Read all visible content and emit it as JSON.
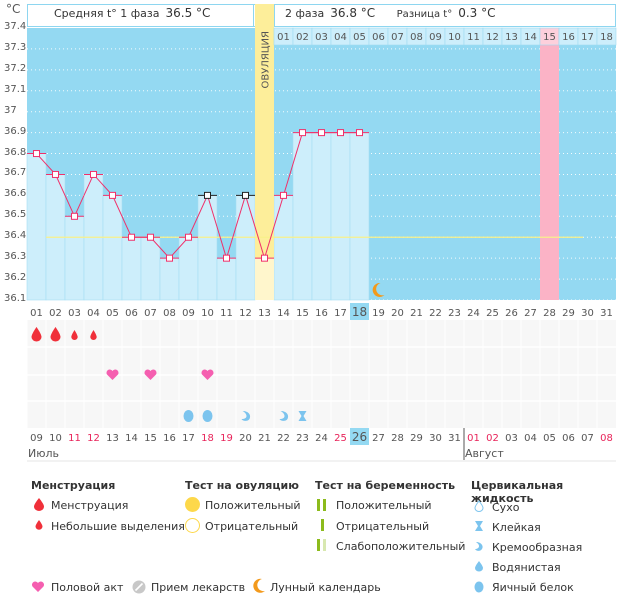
{
  "header": {
    "unit": "°C",
    "phase1_label": "Средняя t° 1 фаза",
    "phase1_value": "36.5 °C",
    "phase2_label": "2 фаза",
    "phase2_value": "36.8 °C",
    "diff_label": "Разница t°",
    "diff_value": "0.3 °C",
    "ovulation_label": "ОВУЛЯЦИЯ"
  },
  "chart_data": {
    "type": "line",
    "title": "",
    "xlabel": "",
    "ylabel": "°C",
    "ylim": [
      36.1,
      37.4
    ],
    "yticks": [
      "37.4",
      "37.3",
      "37.2",
      "37.1",
      "37",
      "36.9",
      "36.8",
      "36.7",
      "36.6",
      "36.5",
      "36.4",
      "36.3",
      "36.2",
      "36.1"
    ],
    "cycle_days": [
      "01",
      "02",
      "03",
      "04",
      "05",
      "06",
      "07",
      "08",
      "09",
      "10",
      "11",
      "12",
      "13",
      "14",
      "15",
      "16",
      "17",
      "18",
      "19",
      "20",
      "21",
      "22",
      "23",
      "24",
      "25",
      "26",
      "27",
      "28",
      "29",
      "30",
      "31"
    ],
    "phase2_days": [
      "01",
      "02",
      "03",
      "04",
      "05",
      "06",
      "07",
      "08",
      "09",
      "10",
      "11",
      "12",
      "13",
      "14",
      "15",
      "16",
      "17",
      "18"
    ],
    "temperatures": [
      36.8,
      36.7,
      36.5,
      36.7,
      36.6,
      36.4,
      36.4,
      36.3,
      36.4,
      36.6,
      36.3,
      36.6,
      36.3,
      36.6,
      36.9,
      36.9,
      36.9,
      36.9
    ],
    "marker_style": [
      "pink",
      "pink",
      "pink",
      "pink",
      "pink",
      "pink",
      "pink",
      "pink",
      "pink",
      "black",
      "pink",
      "black",
      "pink",
      "pink",
      "pink",
      "pink",
      "pink",
      "pink"
    ],
    "coverline": 36.4,
    "ovulation_day": 13,
    "current_day": 18,
    "expected_period_day": 28,
    "moon_day": 19,
    "calendar_dates": [
      "09",
      "10",
      "11",
      "12",
      "13",
      "14",
      "15",
      "16",
      "17",
      "18",
      "19",
      "20",
      "21",
      "22",
      "23",
      "24",
      "25",
      "26",
      "27",
      "28",
      "29",
      "30",
      "31",
      "01",
      "02",
      "03",
      "04",
      "05",
      "06",
      "07",
      "08"
    ],
    "weekend_dates_idx": [
      2,
      3,
      9,
      10,
      16,
      23,
      24,
      30
    ],
    "today_date_idx": 17,
    "months": [
      {
        "label": "Июль",
        "start_idx": 0
      },
      {
        "label": "Август",
        "start_idx": 23
      }
    ],
    "menstruation": [
      {
        "day": 1,
        "type": "heavy"
      },
      {
        "day": 2,
        "type": "heavy"
      },
      {
        "day": 3,
        "type": "light"
      },
      {
        "day": 4,
        "type": "light"
      }
    ],
    "intercourse_days": [
      5,
      7,
      10
    ],
    "cervical_fluid": [
      {
        "day": 9,
        "type": "egg-white"
      },
      {
        "day": 10,
        "type": "egg-white"
      },
      {
        "day": 12,
        "type": "creamy"
      },
      {
        "day": 14,
        "type": "creamy"
      },
      {
        "day": 15,
        "type": "sticky"
      }
    ]
  },
  "colors": {
    "sky": "#94d9f2",
    "bar": "#cdeefb",
    "ovulation": "#fdee9a",
    "period": "#fbb3c6",
    "line": "#f0306a",
    "coverline": "#f8f08a",
    "weekend": "#e8245a",
    "today": "#94d9f2"
  },
  "legend": {
    "menstruation": {
      "title": "Менструация",
      "items": [
        "Менструация",
        "Небольшие выделения"
      ]
    },
    "ovulation_test": {
      "title": "Тест на овуляцию",
      "items": [
        "Положительный",
        "Отрицательный"
      ]
    },
    "pregnancy_test": {
      "title": "Тест на беременность",
      "items": [
        "Положительный",
        "Отрицательный",
        "Слабоположительный"
      ]
    },
    "cervical_fluid": {
      "title": "Цервикальная жидкость",
      "items": [
        "Сухо",
        "Клейкая",
        "Кремообразная",
        "Водянистая",
        "Яичный белок"
      ]
    },
    "bottom": [
      "Половой акт",
      "Прием лекарств",
      "Лунный календарь"
    ]
  }
}
